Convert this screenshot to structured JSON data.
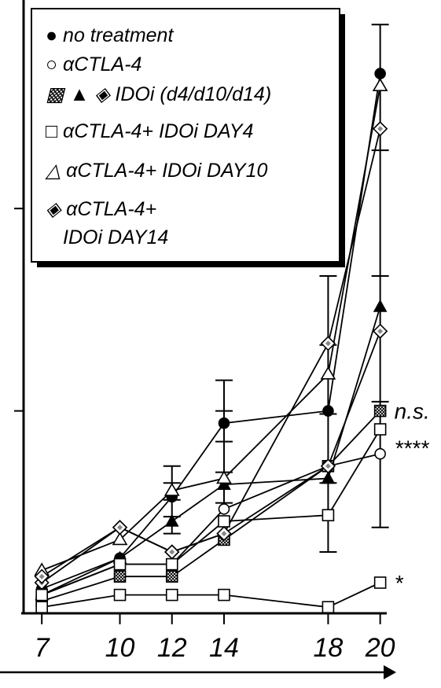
{
  "chart_data": {
    "type": "line",
    "title": "",
    "xlabel": "",
    "ylabel": "",
    "x": [
      7,
      10,
      12,
      14,
      18,
      20
    ],
    "x_tick_labels": [
      "7",
      "10",
      "12",
      "14",
      "18",
      "20"
    ],
    "grid": false,
    "legend_placement": "top-left",
    "legend": [
      {
        "text": "● no treatment"
      },
      {
        "text": "○ αCTLA-4"
      },
      {
        "text": "▩ ▲ ◈ IDOi (d4/d10/d14)"
      },
      {
        "text": "□ αCTLA-4+ IDOi DAY4"
      },
      {
        "text": "△ αCTLA-4+ IDOi DAY10"
      },
      {
        "text": "◈ αCTLA-4+"
      },
      {
        "text": "IDOi DAY14"
      }
    ],
    "series": [
      {
        "marker": "filled-circle",
        "values": [
          0.04,
          0.09,
          0.19,
          0.31,
          0.33,
          0.88
        ]
      },
      {
        "marker": "open-circle",
        "values": [
          0.03,
          0.08,
          0.08,
          0.17,
          0.24,
          0.26
        ]
      },
      {
        "marker": "hatched-square",
        "values": [
          0.02,
          0.06,
          0.06,
          0.12,
          0.24,
          0.33
        ]
      },
      {
        "marker": "filled-triangle",
        "values": [
          0.03,
          0.09,
          0.15,
          0.21,
          0.22,
          0.5
        ]
      },
      {
        "marker": "open-diamond-dot",
        "values": [
          0.05,
          0.14,
          0.1,
          0.13,
          0.44,
          0.79
        ]
      },
      {
        "marker": "open-square",
        "values": [
          0.01,
          0.03,
          0.03,
          0.03,
          0.01,
          0.05
        ]
      },
      {
        "marker": "open-square",
        "values": [
          0.03,
          0.08,
          0.08,
          0.15,
          0.16,
          0.3
        ]
      },
      {
        "marker": "open-triangle",
        "values": [
          0.07,
          0.12,
          0.2,
          0.22,
          0.39,
          0.86
        ]
      },
      {
        "marker": "open-diamond-dot",
        "values": [
          0.06,
          0.14,
          0.1,
          0.13,
          0.24,
          0.46
        ]
      }
    ],
    "error_bars": [
      {
        "x": 12,
        "low": 0.13,
        "high": 0.24
      },
      {
        "x": 14,
        "low": 0.18,
        "high": 0.38
      },
      {
        "x": 18,
        "low": 0.1,
        "high": 0.55
      },
      {
        "x": 20,
        "low": 0.14,
        "high": 0.96
      }
    ],
    "annotations": [
      {
        "text": "n.s.",
        "x": 20,
        "y": 0.33
      },
      {
        "text": "****",
        "x": 20,
        "y": 0.27
      },
      {
        "text": "*",
        "x": 20,
        "y": 0.05
      }
    ],
    "ylim": [
      0,
      1.0
    ],
    "xlim": [
      6.3,
      21.4
    ]
  }
}
